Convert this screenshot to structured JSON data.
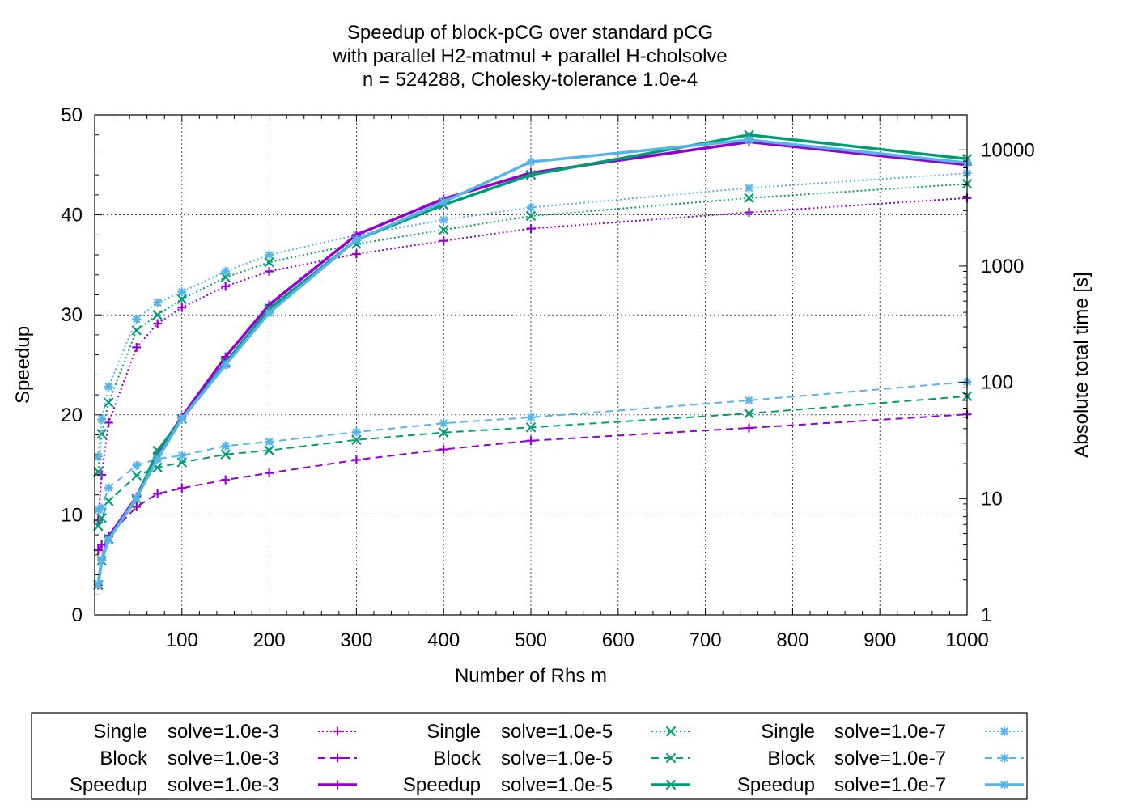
{
  "chart_data": {
    "type": "line",
    "title": "Speedup of block-pCG over standard pCG",
    "subtitle_line2": "with parallel H2-matmul + parallel H-cholsolve",
    "subtitle_line3": "n = 524288, Cholesky-tolerance 1.0e-4",
    "xlabel": "Number of Rhs m",
    "ylabel": "Speedup",
    "y2label": "Absolute total time [s]",
    "xlim": [
      0,
      1000
    ],
    "ylim": [
      0,
      50
    ],
    "y2lim": [
      1,
      20000
    ],
    "y2scale": "log",
    "grid": true,
    "legend_position": "bottom",
    "x_ticks": [
      "100",
      "200",
      "300",
      "400",
      "500",
      "600",
      "700",
      "800",
      "900",
      "1000"
    ],
    "y_ticks": [
      "0",
      "10",
      "20",
      "30",
      "40",
      "50"
    ],
    "y2_ticks": [
      "1",
      "10",
      "100",
      "1000",
      "10000"
    ],
    "x": [
      1,
      2,
      4,
      8,
      16,
      32,
      48,
      64,
      96,
      128,
      192,
      256,
      384,
      512,
      768,
      1000
    ],
    "colors": {
      "e3": "#9400d3",
      "e5": "#009e73",
      "e7": "#56b4e9"
    },
    "series": [
      {
        "kind": "Single",
        "tol": "solve=1.0e-3",
        "color_key": "e3",
        "style": "dotted",
        "marker": "plus",
        "axis": "y2",
        "x": [
          4,
          8,
          16,
          48,
          72,
          100,
          150,
          200,
          300,
          400,
          500,
          750,
          1000
        ],
        "values": [
          6.5,
          16,
          45,
          200,
          320,
          440,
          670,
          900,
          1270,
          1650,
          2100,
          2900,
          3850
        ]
      },
      {
        "kind": "Block",
        "tol": "solve=1.0e-3",
        "color_key": "e3",
        "style": "dashed",
        "marker": "plus",
        "axis": "y2",
        "x": [
          4,
          8,
          16,
          48,
          72,
          100,
          150,
          200,
          300,
          400,
          500,
          750,
          1000
        ],
        "values": [
          3.6,
          4.0,
          4.8,
          8.5,
          11,
          12.3,
          14.5,
          16.6,
          21.5,
          26.5,
          31.5,
          40.5,
          53
        ]
      },
      {
        "kind": "Speedup",
        "tol": "solve=1.0e-3",
        "color_key": "e3",
        "style": "solid",
        "marker": "plus",
        "axis": "y1",
        "x": [
          4,
          8,
          16,
          48,
          72,
          100,
          150,
          200,
          300,
          400,
          500,
          750,
          1000
        ],
        "values": [
          3.0,
          5.5,
          7.8,
          11.8,
          16.2,
          19.8,
          25.8,
          31.0,
          38.0,
          41.6,
          44.2,
          47.3,
          45.0
        ]
      },
      {
        "kind": "Single",
        "tol": "solve=1.0e-5",
        "color_key": "e5",
        "style": "dotted",
        "marker": "cross",
        "axis": "y2",
        "x": [
          4,
          8,
          16,
          48,
          72,
          100,
          150,
          200,
          300,
          400,
          500,
          750,
          1000
        ],
        "values": [
          17,
          36,
          67,
          280,
          380,
          520,
          800,
          1080,
          1550,
          2050,
          2700,
          3850,
          5100
        ]
      },
      {
        "kind": "Block",
        "tol": "solve=1.0e-5",
        "color_key": "e5",
        "style": "dashed",
        "marker": "cross",
        "axis": "y2",
        "x": [
          4,
          8,
          16,
          48,
          72,
          100,
          150,
          200,
          300,
          400,
          500,
          750,
          1000
        ],
        "values": [
          5.8,
          6.8,
          9.5,
          15.8,
          18.5,
          20.5,
          24.0,
          26.0,
          32.0,
          37.0,
          41.0,
          54.0,
          76.0
        ]
      },
      {
        "kind": "Speedup",
        "tol": "solve=1.0e-5",
        "color_key": "e5",
        "style": "solid",
        "marker": "cross",
        "axis": "y1",
        "x": [
          4,
          8,
          16,
          48,
          72,
          100,
          150,
          200,
          300,
          400,
          500,
          750,
          1000
        ],
        "values": [
          3.0,
          5.4,
          7.6,
          11.6,
          16.4,
          19.6,
          25.2,
          30.6,
          37.5,
          41.0,
          44.0,
          48.0,
          45.6
        ]
      },
      {
        "kind": "Single",
        "tol": "solve=1.0e-7",
        "color_key": "e7",
        "style": "dotted",
        "marker": "star",
        "axis": "y2",
        "x": [
          4,
          8,
          16,
          48,
          72,
          100,
          150,
          200,
          300,
          400,
          500,
          750,
          1000
        ],
        "values": [
          23,
          48,
          92,
          350,
          485,
          600,
          900,
          1250,
          1850,
          2500,
          3200,
          4700,
          6300
        ]
      },
      {
        "kind": "Block",
        "tol": "solve=1.0e-7",
        "color_key": "e7",
        "style": "dashed",
        "marker": "star",
        "axis": "y2",
        "x": [
          4,
          8,
          16,
          48,
          72,
          100,
          150,
          200,
          300,
          400,
          500,
          750,
          1000
        ],
        "values": [
          8,
          8.3,
          12.4,
          19.3,
          22,
          23.5,
          28.4,
          30.8,
          37.4,
          44.5,
          50,
          70,
          101
        ]
      },
      {
        "kind": "Speedup",
        "tol": "solve=1.0e-7",
        "color_key": "e7",
        "style": "solid",
        "marker": "star",
        "axis": "y1",
        "x": [
          4,
          8,
          16,
          48,
          72,
          100,
          150,
          200,
          300,
          400,
          500,
          750,
          1000
        ],
        "values": [
          3.1,
          5.5,
          7.5,
          11.7,
          15.6,
          19.6,
          25.0,
          30.2,
          37.5,
          41.3,
          45.3,
          47.5,
          45.2
        ]
      }
    ]
  }
}
